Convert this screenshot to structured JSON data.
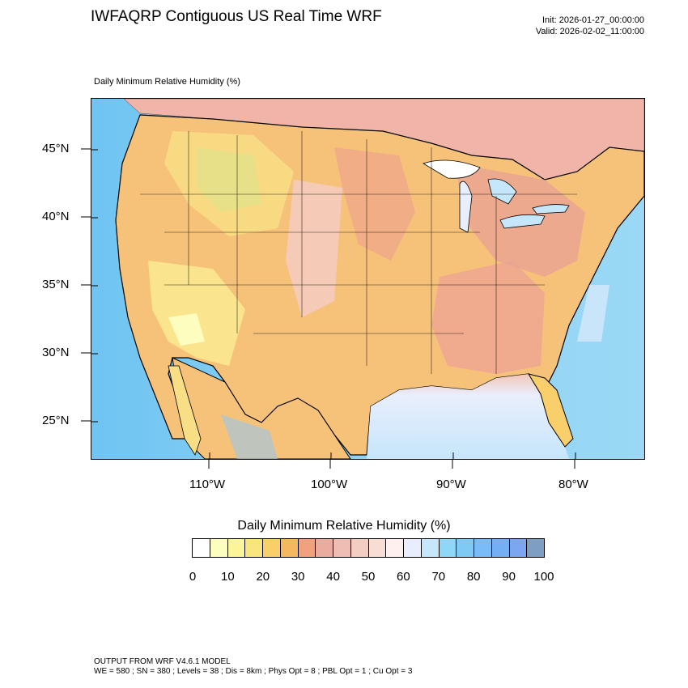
{
  "header": {
    "title": "IWFAQRP Contiguous US Real Time WRF",
    "init": "Init: 2026-01-27_00:00:00",
    "valid": "Valid: 2026-02-02_11:00:00"
  },
  "map": {
    "field_label": "Daily Minimum Relative Humidity   (%)",
    "lat_labels": [
      "45°N",
      "40°N",
      "35°N",
      "30°N",
      "25°N"
    ],
    "lon_labels": [
      "110°W",
      "100°W",
      "90°W",
      "80°W"
    ]
  },
  "colorbar": {
    "title": "Daily Minimum Relative Humidity  (%)",
    "labels": [
      "0",
      "10",
      "20",
      "30",
      "40",
      "50",
      "60",
      "70",
      "80",
      "90",
      "100"
    ],
    "colors": [
      "#ffffff",
      "#fdfdc0",
      "#fbf59a",
      "#f9e57e",
      "#f8cf6a",
      "#f5b760",
      "#f3a07e",
      "#ebaca0",
      "#f0bdb2",
      "#f4cdc2",
      "#f7ddd4",
      "#fdf0ee",
      "#e9eefc",
      "#c6e6fb",
      "#8fd7f7",
      "#7ecaf5",
      "#7abcf7",
      "#74aef5",
      "#7ca6f0",
      "#7e9ec4"
    ]
  },
  "footer": {
    "line1": "OUTPUT FROM WRF V4.6.1 MODEL",
    "line2": "WE = 580 ; SN = 380 ; Levels = 38 ; Dis = 8km ; Phys Opt = 8 ; PBL Opt = 1 ; Cu Opt = 3"
  }
}
